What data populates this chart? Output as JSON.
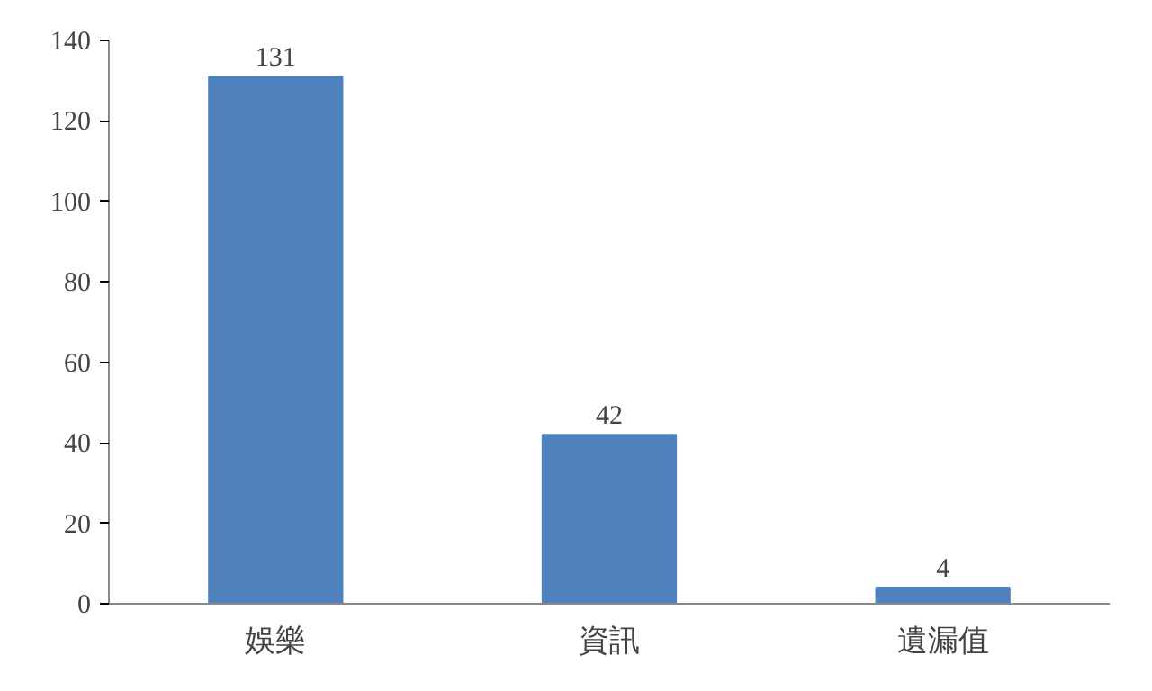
{
  "chart_data": {
    "type": "bar",
    "categories": [
      "娛樂",
      "資訊",
      "遺漏值"
    ],
    "values": [
      131,
      42,
      4
    ],
    "color": "#4f81bd",
    "ylim": [
      0,
      140
    ],
    "yticks": [
      0,
      20,
      40,
      60,
      80,
      100,
      120,
      140
    ],
    "grid": false,
    "data_labels": true
  }
}
